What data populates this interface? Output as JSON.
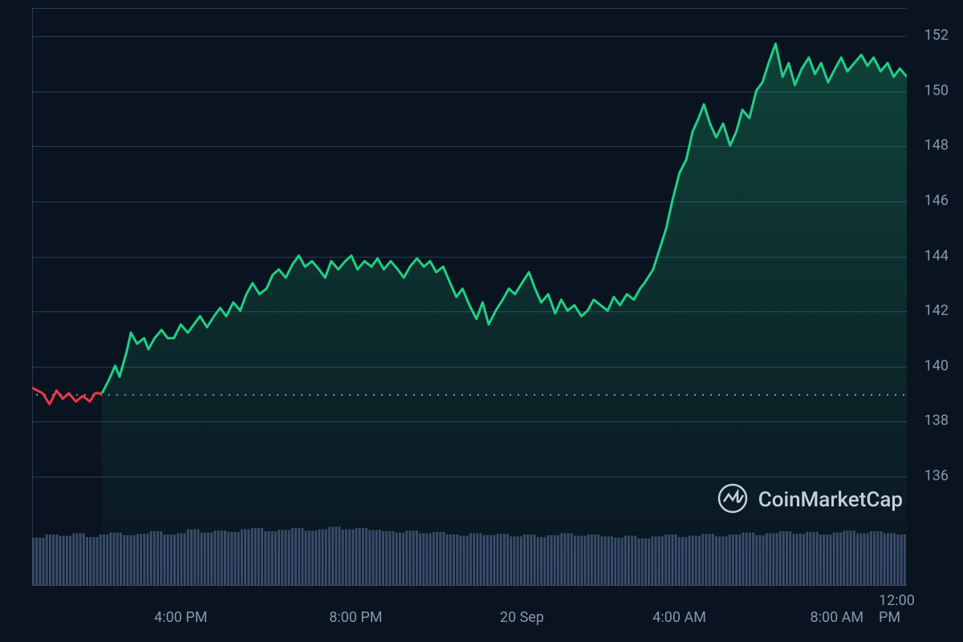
{
  "chart": {
    "type": "line",
    "background_color": "#0a1420",
    "grid_color": "#2a3b52",
    "line_color_up": "#1fcf84",
    "line_color_down": "#ea3943",
    "fill_color_up": "rgba(31,207,132,0.12)",
    "line_width": 3,
    "axis_label_color": "#8596ac",
    "axis_label_fontsize": 18,
    "baseline_value": 139,
    "baseline_style": "dotted",
    "baseline_color": "#8a9bb0",
    "ylim": [
      132,
      153
    ],
    "ytick_values": [
      136,
      138,
      140,
      142,
      144,
      146,
      148,
      150,
      152
    ],
    "ytick_labels": [
      "136",
      "138",
      "140",
      "142",
      "144",
      "146",
      "148",
      "150",
      "152"
    ],
    "xtick_positions": [
      0.17,
      0.37,
      0.56,
      0.74,
      0.92,
      1.0
    ],
    "xtick_labels": [
      "4:00 PM",
      "8:00 PM",
      "20 Sep",
      "4:00 AM",
      "8:00 AM",
      "12:00 PM"
    ],
    "red_segment": [
      [
        0.0,
        139.2
      ],
      [
        0.012,
        139.0
      ],
      [
        0.02,
        138.6
      ],
      [
        0.028,
        139.1
      ],
      [
        0.035,
        138.8
      ],
      [
        0.042,
        139.0
      ],
      [
        0.05,
        138.7
      ],
      [
        0.058,
        138.9
      ],
      [
        0.066,
        138.7
      ],
      [
        0.072,
        139.0
      ],
      [
        0.08,
        139.0
      ]
    ],
    "green_segment": [
      [
        0.08,
        139.0
      ],
      [
        0.088,
        139.5
      ],
      [
        0.095,
        140.0
      ],
      [
        0.1,
        139.6
      ],
      [
        0.108,
        140.5
      ],
      [
        0.113,
        141.2
      ],
      [
        0.12,
        140.8
      ],
      [
        0.128,
        141.0
      ],
      [
        0.133,
        140.6
      ],
      [
        0.14,
        141.0
      ],
      [
        0.148,
        141.3
      ],
      [
        0.155,
        141.0
      ],
      [
        0.162,
        141.0
      ],
      [
        0.17,
        141.5
      ],
      [
        0.178,
        141.2
      ],
      [
        0.185,
        141.5
      ],
      [
        0.192,
        141.8
      ],
      [
        0.2,
        141.4
      ],
      [
        0.208,
        141.8
      ],
      [
        0.215,
        142.1
      ],
      [
        0.222,
        141.8
      ],
      [
        0.23,
        142.3
      ],
      [
        0.238,
        142.0
      ],
      [
        0.245,
        142.6
      ],
      [
        0.252,
        143.0
      ],
      [
        0.26,
        142.6
      ],
      [
        0.268,
        142.8
      ],
      [
        0.275,
        143.3
      ],
      [
        0.282,
        143.5
      ],
      [
        0.29,
        143.2
      ],
      [
        0.298,
        143.7
      ],
      [
        0.305,
        144.0
      ],
      [
        0.312,
        143.6
      ],
      [
        0.32,
        143.8
      ],
      [
        0.328,
        143.5
      ],
      [
        0.335,
        143.2
      ],
      [
        0.342,
        143.8
      ],
      [
        0.35,
        143.5
      ],
      [
        0.358,
        143.8
      ],
      [
        0.365,
        144.0
      ],
      [
        0.372,
        143.5
      ],
      [
        0.38,
        143.8
      ],
      [
        0.388,
        143.6
      ],
      [
        0.395,
        143.9
      ],
      [
        0.402,
        143.5
      ],
      [
        0.41,
        143.8
      ],
      [
        0.418,
        143.5
      ],
      [
        0.425,
        143.2
      ],
      [
        0.432,
        143.6
      ],
      [
        0.44,
        143.9
      ],
      [
        0.448,
        143.6
      ],
      [
        0.455,
        143.8
      ],
      [
        0.462,
        143.4
      ],
      [
        0.47,
        143.6
      ],
      [
        0.478,
        143.0
      ],
      [
        0.485,
        142.5
      ],
      [
        0.492,
        142.8
      ],
      [
        0.5,
        142.2
      ],
      [
        0.508,
        141.7
      ],
      [
        0.515,
        142.3
      ],
      [
        0.522,
        141.5
      ],
      [
        0.53,
        142.0
      ],
      [
        0.538,
        142.4
      ],
      [
        0.545,
        142.8
      ],
      [
        0.552,
        142.6
      ],
      [
        0.56,
        143.0
      ],
      [
        0.568,
        143.4
      ],
      [
        0.575,
        142.8
      ],
      [
        0.582,
        142.3
      ],
      [
        0.59,
        142.6
      ],
      [
        0.598,
        141.9
      ],
      [
        0.605,
        142.4
      ],
      [
        0.612,
        142.0
      ],
      [
        0.62,
        142.2
      ],
      [
        0.628,
        141.8
      ],
      [
        0.635,
        142.0
      ],
      [
        0.642,
        142.4
      ],
      [
        0.65,
        142.2
      ],
      [
        0.658,
        142.0
      ],
      [
        0.665,
        142.5
      ],
      [
        0.672,
        142.2
      ],
      [
        0.68,
        142.6
      ],
      [
        0.688,
        142.4
      ],
      [
        0.695,
        142.8
      ],
      [
        0.7,
        143.0
      ],
      [
        0.71,
        143.5
      ],
      [
        0.718,
        144.3
      ],
      [
        0.725,
        145.0
      ],
      [
        0.732,
        146.0
      ],
      [
        0.74,
        147.0
      ],
      [
        0.748,
        147.5
      ],
      [
        0.755,
        148.5
      ],
      [
        0.762,
        149.0
      ],
      [
        0.768,
        149.5
      ],
      [
        0.775,
        148.8
      ],
      [
        0.782,
        148.3
      ],
      [
        0.79,
        148.8
      ],
      [
        0.798,
        148.0
      ],
      [
        0.805,
        148.5
      ],
      [
        0.812,
        149.3
      ],
      [
        0.82,
        149.0
      ],
      [
        0.828,
        150.0
      ],
      [
        0.835,
        150.3
      ],
      [
        0.842,
        151.0
      ],
      [
        0.85,
        151.7
      ],
      [
        0.858,
        150.5
      ],
      [
        0.865,
        151.0
      ],
      [
        0.872,
        150.2
      ],
      [
        0.88,
        150.8
      ],
      [
        0.888,
        151.2
      ],
      [
        0.895,
        150.6
      ],
      [
        0.902,
        151.0
      ],
      [
        0.91,
        150.3
      ],
      [
        0.918,
        150.8
      ],
      [
        0.925,
        151.2
      ],
      [
        0.932,
        150.7
      ],
      [
        0.94,
        151.0
      ],
      [
        0.948,
        151.3
      ],
      [
        0.955,
        150.9
      ],
      [
        0.962,
        151.2
      ],
      [
        0.97,
        150.7
      ],
      [
        0.978,
        151.0
      ],
      [
        0.985,
        150.5
      ],
      [
        0.992,
        150.8
      ],
      [
        1.0,
        150.5
      ]
    ],
    "volume": {
      "color": "#3a4d6b",
      "height_variation": [
        0.75,
        0.8,
        0.78,
        0.82,
        0.76,
        0.8,
        0.83,
        0.79,
        0.81,
        0.85,
        0.8,
        0.82,
        0.88,
        0.83,
        0.86,
        0.84,
        0.88,
        0.9,
        0.85,
        0.87,
        0.9,
        0.86,
        0.88,
        0.92,
        0.88,
        0.9,
        0.87,
        0.85,
        0.83,
        0.86,
        0.82,
        0.84,
        0.8,
        0.78,
        0.82,
        0.79,
        0.81,
        0.77,
        0.8,
        0.76,
        0.79,
        0.82,
        0.78,
        0.8,
        0.77,
        0.75,
        0.78,
        0.74,
        0.77,
        0.8,
        0.76,
        0.78,
        0.81,
        0.77,
        0.8,
        0.83,
        0.79,
        0.82,
        0.85,
        0.81,
        0.84,
        0.8,
        0.83,
        0.86,
        0.82,
        0.85,
        0.82,
        0.8
      ]
    }
  },
  "watermark": {
    "text": "CoinMarketCap",
    "text_color": "#c5d0de",
    "fontsize": 26,
    "icon_stroke": "#c5d0de"
  }
}
